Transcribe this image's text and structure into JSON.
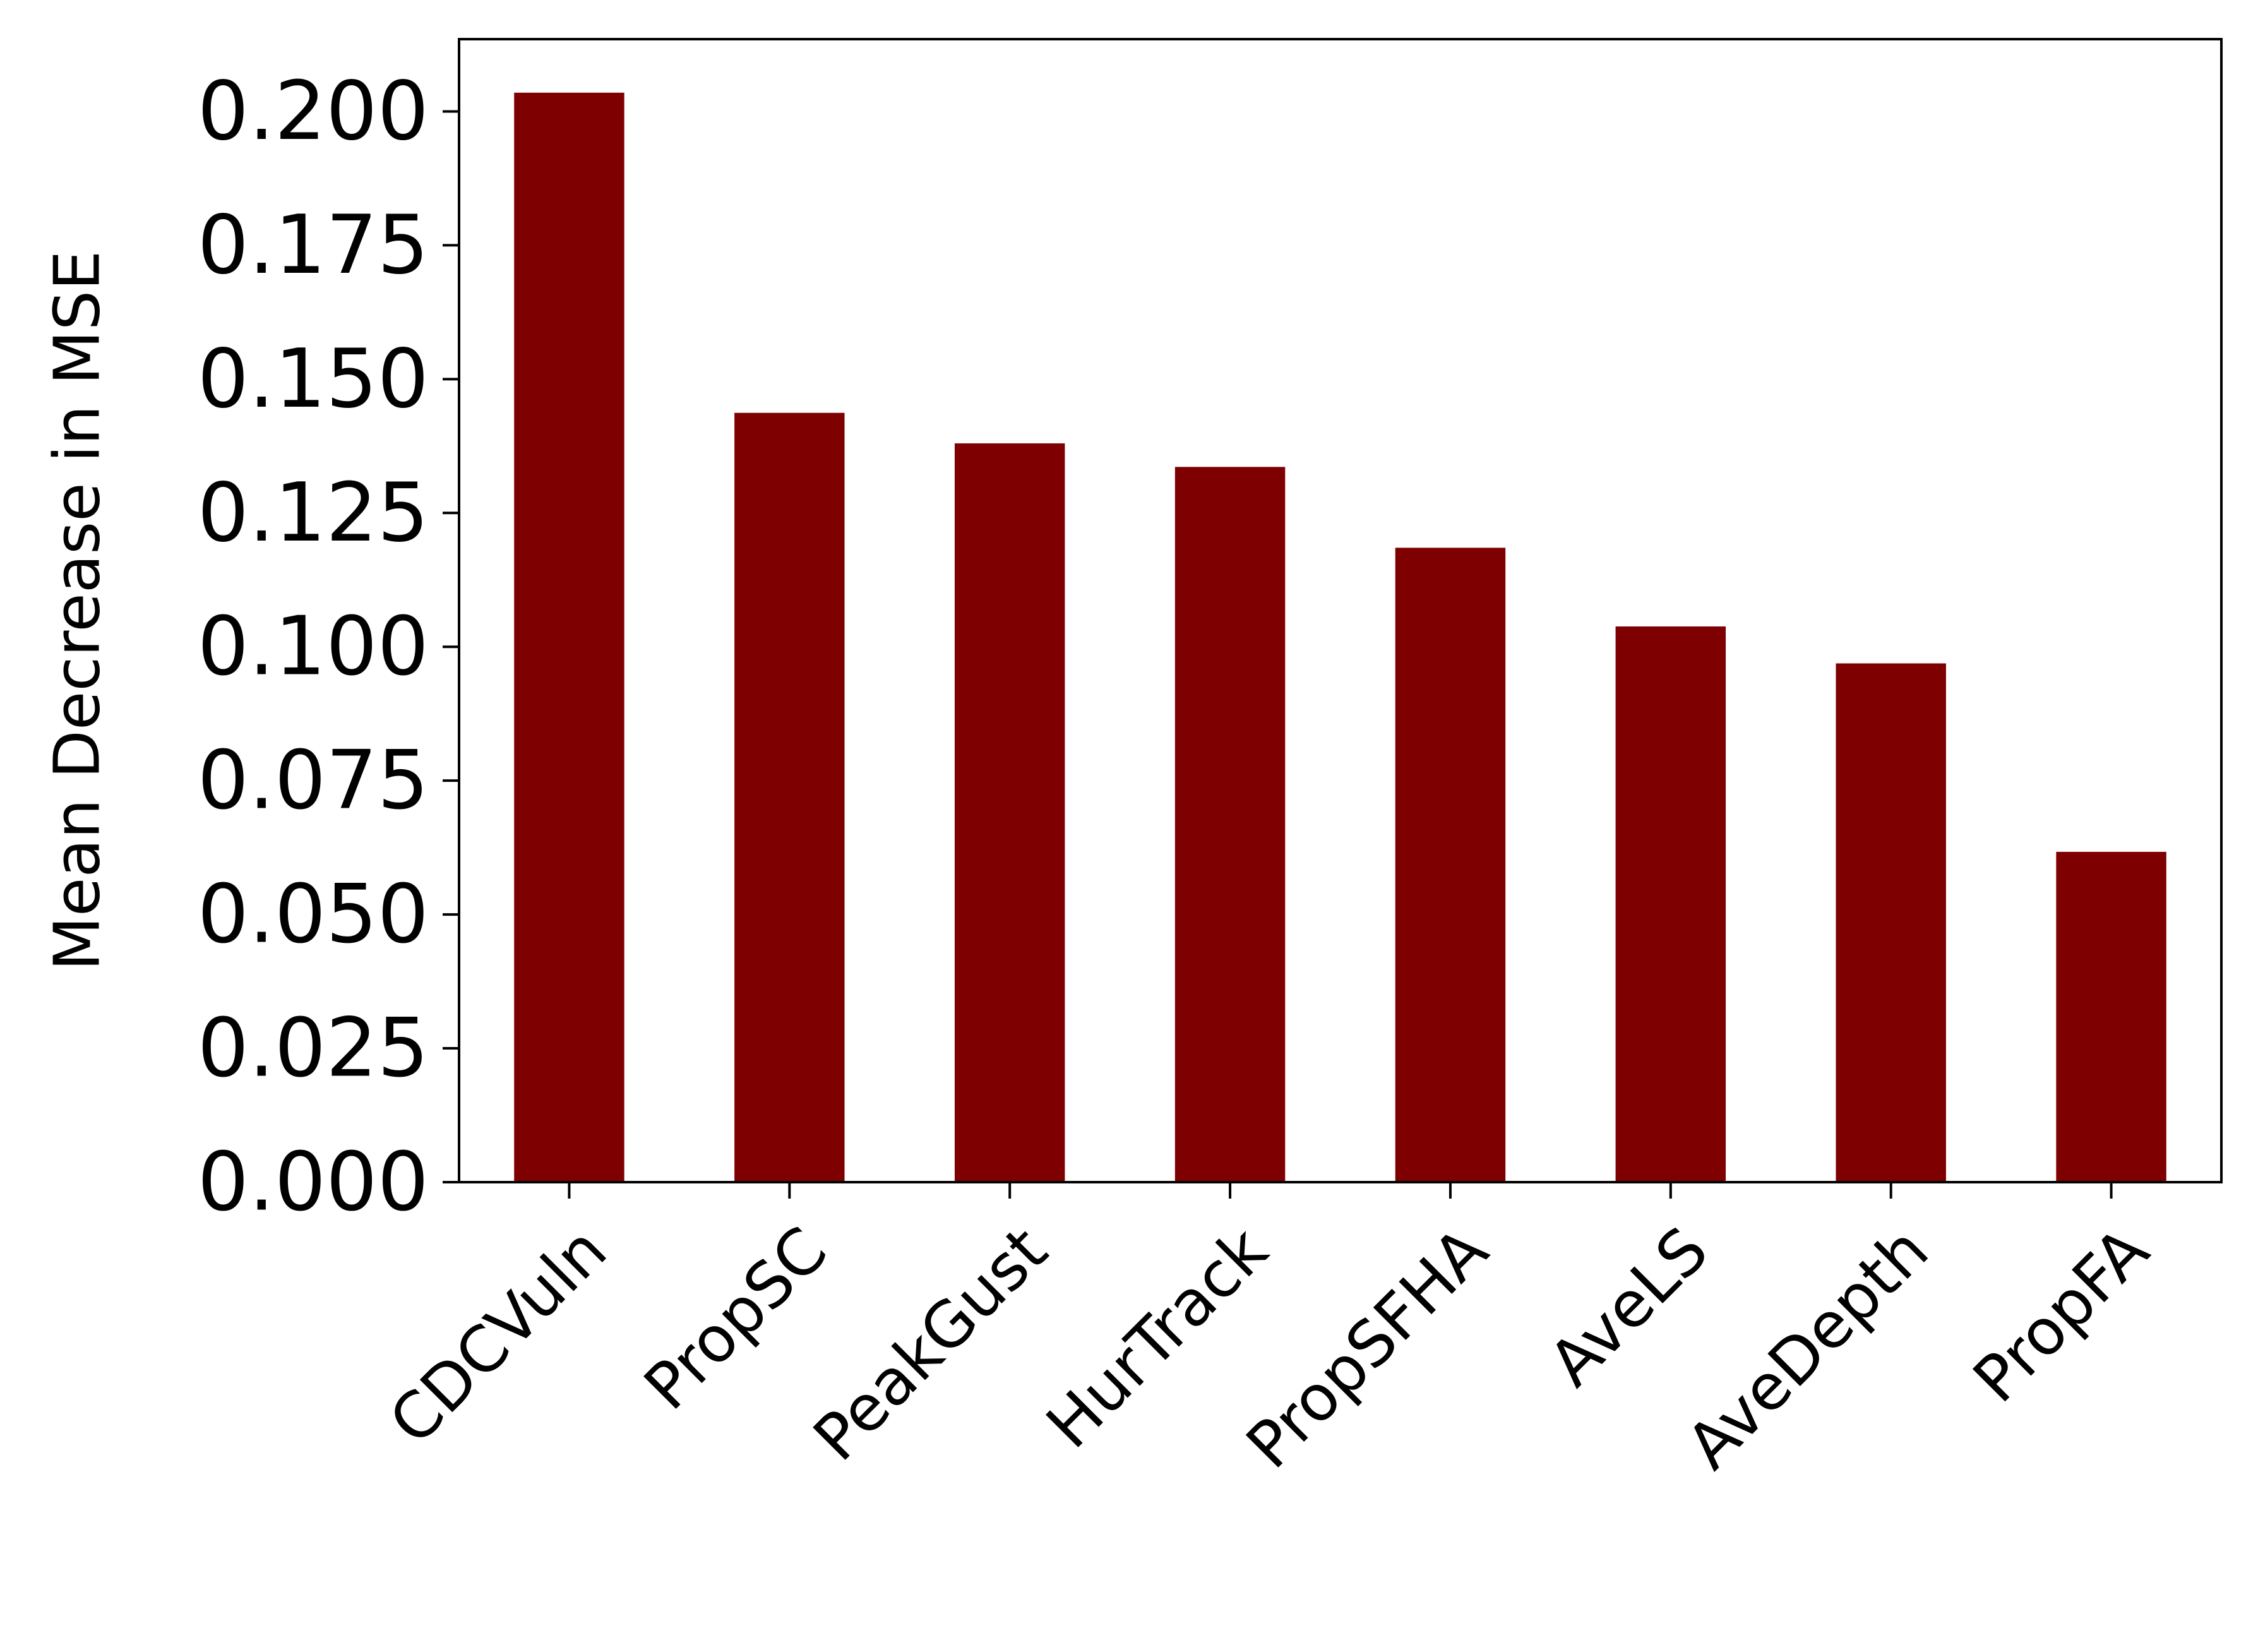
{
  "chart_data": {
    "type": "bar",
    "title": "",
    "xlabel": "",
    "ylabel": "Mean Decrease in MSE",
    "categories": [
      "CDCVuln",
      "PropSC",
      "PeakGust",
      "HurTrack",
      "PropSFHA",
      "AveLS",
      "AveDepth",
      "PropFA"
    ],
    "values": [
      0.2035,
      0.1437,
      0.138,
      0.1336,
      0.1185,
      0.1038,
      0.0969,
      0.0617
    ],
    "ylim": [
      0,
      0.2135
    ],
    "yticks": [
      "0.000",
      "0.025",
      "0.050",
      "0.075",
      "0.100",
      "0.125",
      "0.150",
      "0.175",
      "0.200"
    ],
    "bar_color": "#7f0000",
    "grid": false,
    "legend": "none"
  }
}
